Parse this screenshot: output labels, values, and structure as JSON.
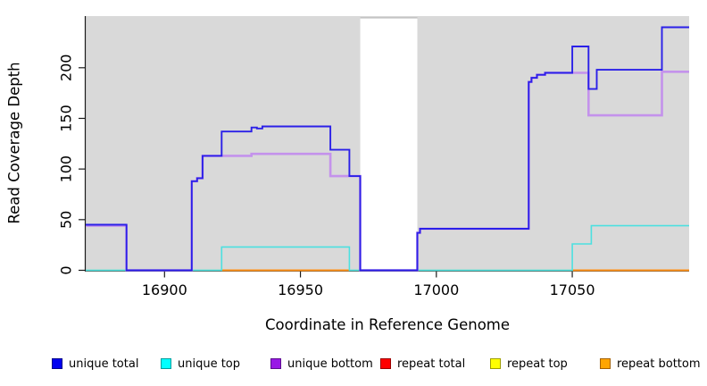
{
  "figure": {
    "x_axis_label": "Coordinate in Reference Genome",
    "y_axis_label": "Read Coverage Depth"
  },
  "legend": {
    "items": [
      {
        "label": "unique total",
        "fill": "#0000f0",
        "border": "#00008b"
      },
      {
        "label": "unique top",
        "fill": "#00ffff",
        "border": "#009d9d"
      },
      {
        "label": "unique bottom",
        "fill": "#9918e6",
        "border": "#5c0d8f"
      },
      {
        "label": "repeat total",
        "fill": "#ff0000",
        "border": "#990000"
      },
      {
        "label": "repeat top",
        "fill": "#ffff00",
        "border": "#9d9d00"
      },
      {
        "label": "repeat bottom",
        "fill": "#ffa500",
        "border": "#a36000"
      }
    ]
  },
  "chart_data": {
    "type": "line",
    "subtype": "step-coverage-plot",
    "title": "",
    "xlabel": "Coordinate in Reference Genome",
    "ylabel": "Read Coverage Depth",
    "xlim": [
      16871,
      17093
    ],
    "ylim": [
      0,
      251
    ],
    "x_ticks": [
      16900,
      16950,
      17000,
      17050
    ],
    "y_ticks": [
      0,
      50,
      100,
      150,
      200
    ],
    "grid": false,
    "legend_position": "bottom",
    "plot_background": "#d9d9d9",
    "masked_region": {
      "x_start": 16972,
      "x_end": 16993,
      "color": "#ffffff",
      "note": "white vertical band where all coverage is 0"
    },
    "baseline": {
      "name": "zero-baseline",
      "color": "#96d296",
      "y": 0
    },
    "series": [
      {
        "name": "unique total",
        "color": "#2b20e8",
        "line_width": 1.9,
        "points": [
          [
            16871,
            45
          ],
          [
            16886,
            45
          ],
          [
            16886,
            0
          ],
          [
            16910,
            0
          ],
          [
            16910,
            88
          ],
          [
            16912,
            88
          ],
          [
            16912,
            91
          ],
          [
            16914,
            91
          ],
          [
            16914,
            113
          ],
          [
            16921,
            113
          ],
          [
            16921,
            137
          ],
          [
            16932,
            137
          ],
          [
            16932,
            141
          ],
          [
            16934,
            141
          ],
          [
            16934,
            140
          ],
          [
            16936,
            140
          ],
          [
            16936,
            142
          ],
          [
            16961,
            142
          ],
          [
            16961,
            119
          ],
          [
            16968,
            119
          ],
          [
            16968,
            93
          ],
          [
            16972,
            93
          ],
          [
            16972,
            0
          ],
          [
            16993,
            0
          ],
          [
            16993,
            37
          ],
          [
            16994,
            37
          ],
          [
            16994,
            41
          ],
          [
            17034,
            41
          ],
          [
            17034,
            186
          ],
          [
            17035,
            186
          ],
          [
            17035,
            190
          ],
          [
            17037,
            190
          ],
          [
            17037,
            193
          ],
          [
            17040,
            193
          ],
          [
            17040,
            195
          ],
          [
            17050,
            195
          ],
          [
            17050,
            221
          ],
          [
            17056,
            221
          ],
          [
            17056,
            179
          ],
          [
            17059,
            179
          ],
          [
            17059,
            198
          ],
          [
            17083,
            198
          ],
          [
            17083,
            240
          ],
          [
            17093,
            240
          ]
        ]
      },
      {
        "name": "unique top",
        "color": "#4ce0e0",
        "line_width": 1.6,
        "points": [
          [
            16871,
            0
          ],
          [
            16921,
            0
          ],
          [
            16921,
            23
          ],
          [
            16968,
            23
          ],
          [
            16968,
            0
          ],
          [
            17050,
            0
          ],
          [
            17050,
            26
          ],
          [
            17057,
            26
          ],
          [
            17057,
            44
          ],
          [
            17093,
            44
          ]
        ]
      },
      {
        "name": "unique bottom",
        "color": "#c492ec",
        "line_width": 2.6,
        "points": [
          [
            16871,
            44
          ],
          [
            16886,
            44
          ],
          [
            16886,
            0
          ],
          [
            16910,
            0
          ],
          [
            16910,
            88
          ],
          [
            16912,
            88
          ],
          [
            16912,
            91
          ],
          [
            16914,
            91
          ],
          [
            16914,
            113
          ],
          [
            16932,
            113
          ],
          [
            16932,
            115
          ],
          [
            16961,
            115
          ],
          [
            16961,
            93
          ],
          [
            16972,
            93
          ],
          [
            16972,
            0
          ],
          [
            16993,
            0
          ],
          [
            16993,
            37
          ],
          [
            16994,
            37
          ],
          [
            16994,
            41
          ],
          [
            17034,
            41
          ],
          [
            17034,
            186
          ],
          [
            17035,
            186
          ],
          [
            17035,
            190
          ],
          [
            17037,
            190
          ],
          [
            17037,
            193
          ],
          [
            17040,
            193
          ],
          [
            17040,
            195
          ],
          [
            17056,
            195
          ],
          [
            17056,
            153
          ],
          [
            17083,
            153
          ],
          [
            17083,
            196
          ],
          [
            17093,
            196
          ]
        ]
      },
      {
        "name": "repeat total",
        "color": "#ff0000",
        "line_width": 1.6,
        "points": [],
        "visible": false,
        "note": "coverage 0 throughout, not visible"
      },
      {
        "name": "repeat top",
        "color": "#ffff00",
        "line_width": 1.6,
        "points": [],
        "visible": false,
        "note": "coverage 0 throughout, not visible"
      },
      {
        "name": "repeat bottom",
        "color": "#ff9015",
        "line_width": 2,
        "segments": [
          [
            [
              16921,
              0
            ],
            [
              16968,
              0
            ]
          ],
          [
            [
              17050,
              0
            ],
            [
              17093,
              0
            ]
          ]
        ]
      }
    ]
  }
}
